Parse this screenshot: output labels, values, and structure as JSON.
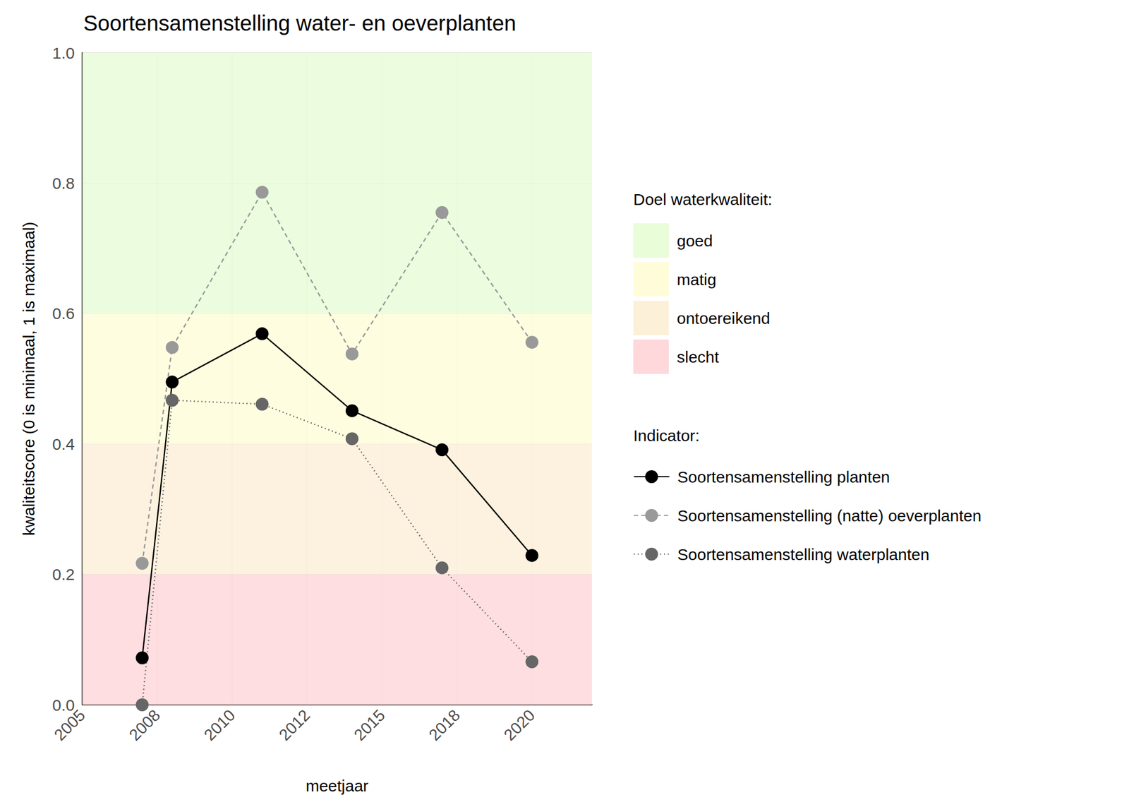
{
  "chart_data": {
    "type": "line",
    "title": "Soortensamenstelling water- en oeverplanten",
    "x_label": "meetjaar",
    "y_label": "kwaliteitscore (0 is minimaal, 1 is maximaal)",
    "x": [
      2007,
      2008,
      2011,
      2014,
      2017,
      2020
    ],
    "series": [
      {
        "name": "Soortensamenstelling planten",
        "color": "#000000",
        "line_style": "solid",
        "marker": "circle",
        "values": [
          0.072,
          0.495,
          0.569,
          0.451,
          0.391,
          0.229
        ]
      },
      {
        "name": "Soortensamenstelling (natte) oeverplanten",
        "color": "#999999",
        "line_style": "dashed",
        "marker": "circle",
        "values": [
          0.217,
          0.548,
          0.786,
          0.538,
          0.755,
          0.556
        ]
      },
      {
        "name": "Soortensamenstelling waterplanten",
        "color": "#666666",
        "line_style": "dotted",
        "marker": "circle",
        "values": [
          0.0,
          0.467,
          0.461,
          0.408,
          0.21,
          0.066
        ]
      }
    ],
    "legend_title": "Indicator:",
    "bands_title": "Doel waterkwaliteit:",
    "bands": [
      {
        "name": "goed",
        "from": 0.6,
        "to": 1.0,
        "color": "#e8fdd8"
      },
      {
        "name": "matig",
        "from": 0.4,
        "to": 0.6,
        "color": "#fffdd9"
      },
      {
        "name": "ontoereikend",
        "from": 0.2,
        "to": 0.4,
        "color": "#fdf0d9"
      },
      {
        "name": "slecht",
        "from": 0.0,
        "to": 0.2,
        "color": "#fed8da"
      }
    ],
    "xlim": [
      2005,
      2022
    ],
    "xticks": [
      2005,
      {
        "value": 2007.5,
        "label": "2008"
      },
      2010,
      {
        "value": 2012.5,
        "label": "2012"
      },
      2015,
      {
        "value": 2017.5,
        "label": "2018"
      },
      2020
    ],
    "ylim": [
      0,
      1
    ],
    "yticks": [
      {
        "value": 0,
        "label": "0.0"
      },
      0.2,
      0.4,
      0.6,
      0.8,
      {
        "value": 1,
        "label": "1.0"
      }
    ],
    "grid": true,
    "legend": "right"
  }
}
